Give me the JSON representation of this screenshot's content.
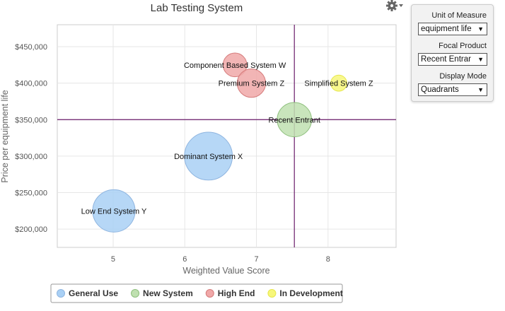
{
  "chart_data": {
    "type": "scatter",
    "subtype": "bubble",
    "title": "Lab Testing System",
    "xlabel": "Weighted Value Score",
    "ylabel": "Price per equipment life",
    "xlim": [
      4.22,
      8.95
    ],
    "ylim": [
      175000,
      480000
    ],
    "xticks": [
      5,
      6,
      7,
      8
    ],
    "yticks": [
      200000,
      250000,
      300000,
      350000,
      400000,
      450000
    ],
    "ytick_labels": [
      "$200,000",
      "$250,000",
      "$300,000",
      "$350,000",
      "$400,000",
      "$450,000"
    ],
    "grid": true,
    "quadrant_lines": {
      "x": 7.53,
      "y": 350000,
      "color": "#6a1b6a"
    },
    "categories": [
      {
        "name": "General Use",
        "color": "#a9d0f5",
        "stroke": "#8fb5e0"
      },
      {
        "name": "New System",
        "color": "#bfe0b0",
        "stroke": "#8dbf7c"
      },
      {
        "name": "High End",
        "color": "#f0a8a8",
        "stroke": "#d57a7a"
      },
      {
        "name": "In Development",
        "color": "#f7f77a",
        "stroke": "#e6e64a"
      }
    ],
    "points": [
      {
        "label": "Low End System Y",
        "x": 5.01,
        "y": 225000,
        "size": 1.0,
        "category": "General Use"
      },
      {
        "label": "Dominant System X",
        "x": 6.33,
        "y": 300000,
        "size": 1.13,
        "category": "General Use"
      },
      {
        "label": "Recent Entrant",
        "x": 7.53,
        "y": 350000,
        "size": 0.81,
        "category": "New System"
      },
      {
        "label": "Component Based System W",
        "x": 6.7,
        "y": 425000,
        "size": 0.56,
        "category": "High End"
      },
      {
        "label": "Premium System Z",
        "x": 6.93,
        "y": 400000,
        "size": 0.67,
        "category": "High End"
      },
      {
        "label": "Simplified System Z",
        "x": 8.15,
        "y": 400000,
        "size": 0.38,
        "category": "In Development"
      }
    ],
    "legend_position": "bottom-left"
  },
  "controls": {
    "unit_of_measure": {
      "label": "Unit of Measure",
      "value": "equipment life"
    },
    "focal_product": {
      "label": "Focal Product",
      "value": "Recent Entrar"
    },
    "display_mode": {
      "label": "Display Mode",
      "value": "Quadrants"
    }
  },
  "icons": {
    "settings": "gear-icon",
    "dropdown": "dropdown-caret-icon"
  }
}
